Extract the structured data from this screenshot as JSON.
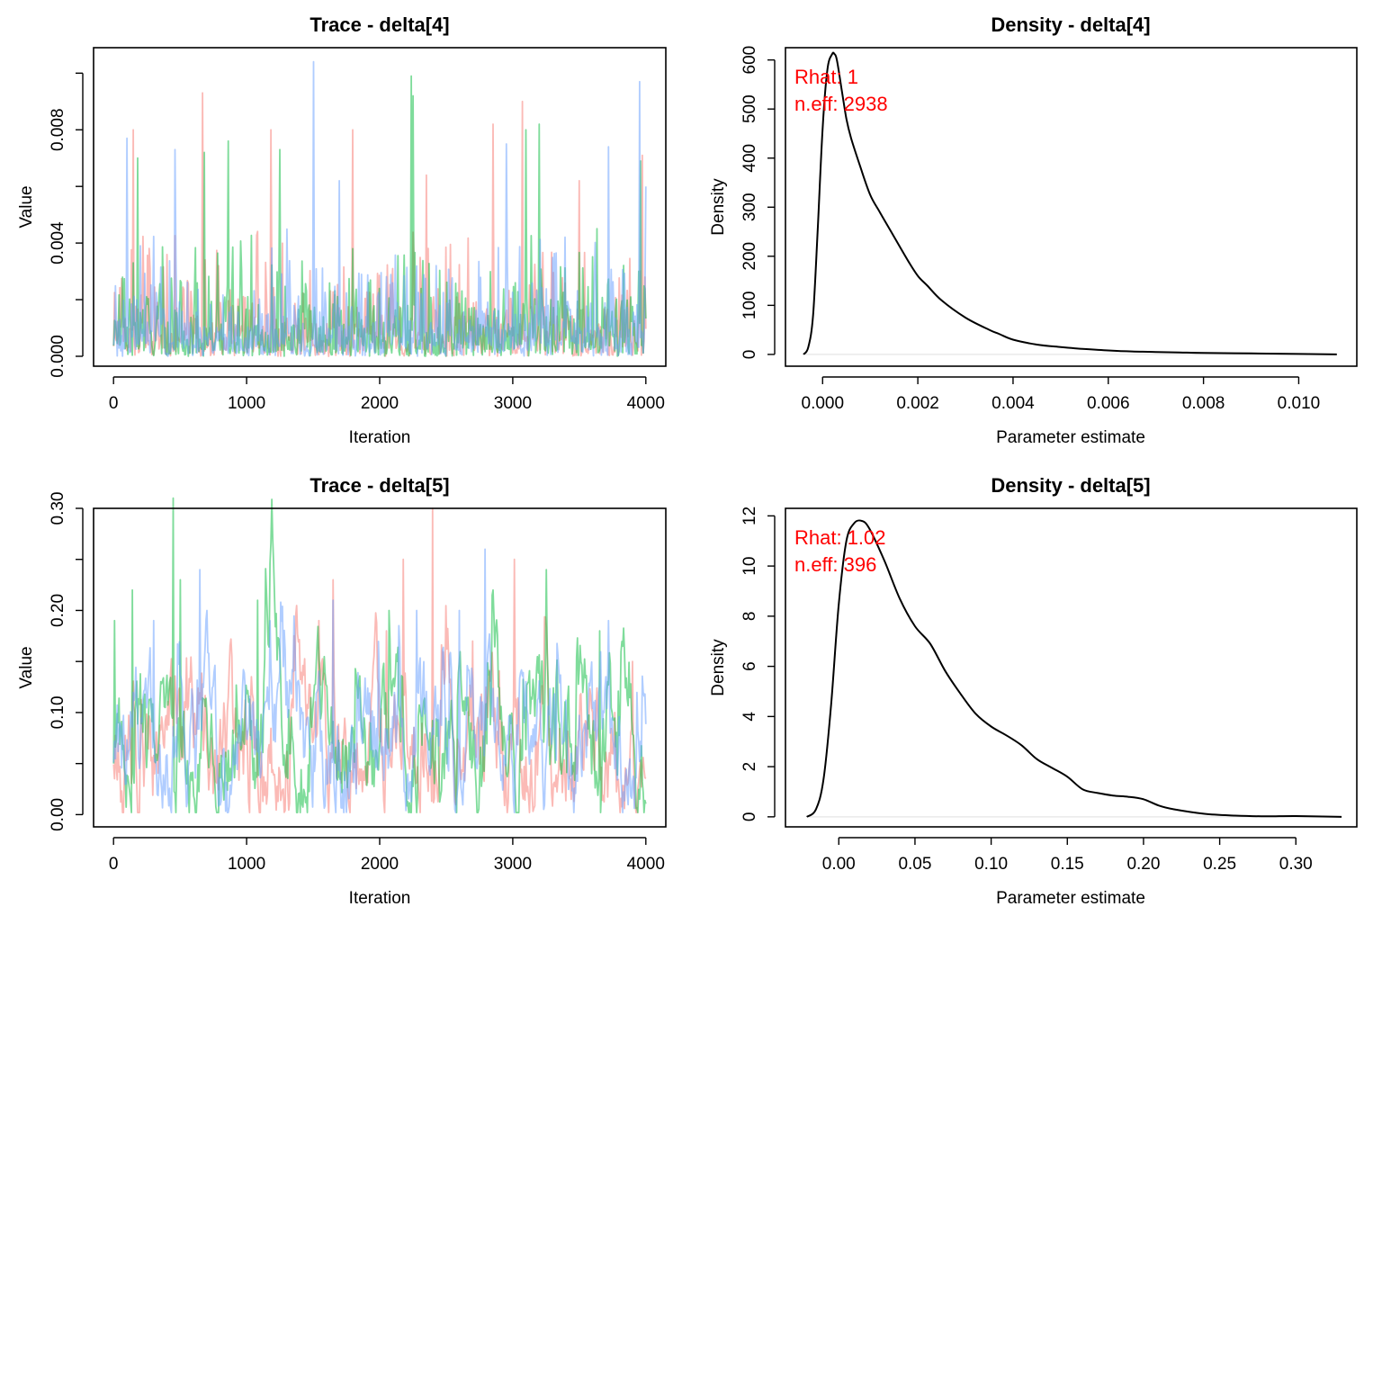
{
  "chart_data": [
    {
      "type": "line",
      "title": "Trace - delta[4]",
      "xlabel": "Iteration",
      "ylabel": "Value",
      "xlim": [
        -150,
        4150
      ],
      "ylim": [
        -0.00035,
        0.0109
      ],
      "x_ticks": [
        0,
        1000,
        2000,
        3000,
        4000
      ],
      "x_tick_labels": [
        "0",
        "1000",
        "2000",
        "3000",
        "4000"
      ],
      "y_ticks": [
        0,
        0.002,
        0.004,
        0.006,
        0.008,
        0.01
      ],
      "y_tick_labels": [
        "0.000",
        "",
        "0.004",
        "",
        "0.008",
        ""
      ],
      "series": [
        {
          "color": "#F8766D",
          "x_range": [
            1,
            4000
          ],
          "n_points": 600,
          "typical": 0.0012,
          "spikes": [
            [
              150,
              0.008
            ],
            [
              670,
              0.0093
            ],
            [
              1180,
              0.008
            ],
            [
              1800,
              0.008
            ],
            [
              2350,
              0.0064
            ],
            [
              2850,
              0.0082
            ],
            [
              3070,
              0.009
            ],
            [
              3500,
              0.0062
            ],
            [
              3970,
              0.0071
            ]
          ]
        },
        {
          "color": "#00BA38",
          "x_range": [
            1,
            4000
          ],
          "n_points": 600,
          "typical": 0.0012,
          "spikes": [
            [
              180,
              0.007
            ],
            [
              680,
              0.0072
            ],
            [
              860,
              0.0076
            ],
            [
              1250,
              0.0073
            ],
            [
              2240,
              0.0099
            ],
            [
              2250,
              0.0092
            ],
            [
              3100,
              0.008
            ],
            [
              3200,
              0.0082
            ],
            [
              3960,
              0.0069
            ]
          ]
        },
        {
          "color": "#619CFF",
          "x_range": [
            1,
            4000
          ],
          "n_points": 600,
          "typical": 0.0012,
          "spikes": [
            [
              100,
              0.0077
            ],
            [
              460,
              0.0073
            ],
            [
              1500,
              0.0104
            ],
            [
              1700,
              0.0062
            ],
            [
              2950,
              0.0075
            ],
            [
              3720,
              0.0074
            ],
            [
              3950,
              0.0097
            ],
            [
              4000,
              0.006
            ]
          ]
        }
      ]
    },
    {
      "type": "line",
      "title": "Density - delta[4]",
      "xlabel": "Parameter estimate",
      "ylabel": "Density",
      "xlim": [
        -0.00078,
        0.01122
      ],
      "ylim": [
        -24,
        625
      ],
      "x_ticks": [
        0,
        0.002,
        0.004,
        0.006,
        0.008,
        0.01
      ],
      "x_tick_labels": [
        "0.000",
        "0.002",
        "0.004",
        "0.006",
        "0.008",
        "0.010"
      ],
      "y_ticks": [
        0,
        100,
        200,
        300,
        400,
        500,
        600
      ],
      "y_tick_labels": [
        "0",
        "100",
        "200",
        "300",
        "400",
        "500",
        "600"
      ],
      "x": [
        -0.0004,
        -0.0003,
        -0.0002,
        -0.0001,
        0,
        0.0001,
        0.0002,
        0.00025,
        0.0003,
        0.0004,
        0.0005,
        0.0006,
        0.0008,
        0.001,
        0.0012,
        0.0015,
        0.0018,
        0.002,
        0.0022,
        0.0025,
        0.003,
        0.0035,
        0.0037,
        0.004,
        0.0045,
        0.005,
        0.0055,
        0.006,
        0.0065,
        0.007,
        0.0075,
        0.008,
        0.009,
        0.01,
        0.0108
      ],
      "y": [
        0,
        15,
        80,
        260,
        460,
        580,
        612,
        612,
        600,
        540,
        480,
        440,
        380,
        325,
        290,
        240,
        190,
        160,
        140,
        110,
        75,
        50,
        42,
        30,
        20,
        15,
        11,
        8,
        6,
        5,
        4,
        3,
        2,
        1,
        0
      ],
      "annotations": {
        "rhat": "Rhat: 1",
        "neff": "n.eff: 2938"
      }
    },
    {
      "type": "line",
      "title": "Trace - delta[5]",
      "xlabel": "Iteration",
      "ylabel": "Value",
      "xlim": [
        -150,
        4150
      ],
      "ylim": [
        -0.012,
        0.3
      ],
      "x_ticks": [
        0,
        1000,
        2000,
        3000,
        4000
      ],
      "x_tick_labels": [
        "0",
        "1000",
        "2000",
        "3000",
        "4000"
      ],
      "y_ticks": [
        0,
        0.05,
        0.1,
        0.15,
        0.2,
        0.25,
        0.3
      ],
      "y_tick_labels": [
        "0.00",
        "",
        "0.10",
        "",
        "0.20",
        "",
        "0.30"
      ],
      "series": [
        {
          "color": "#F8766D",
          "x_range": [
            1,
            4000
          ],
          "n_points": 600,
          "typical": 0.06,
          "spikes": [
            [
              1540,
              0.19
            ],
            [
              1650,
              0.23
            ],
            [
              2050,
              0.18
            ],
            [
              2180,
              0.25
            ],
            [
              2400,
              0.3
            ],
            [
              2700,
              0.17
            ],
            [
              3010,
              0.25
            ],
            [
              3900,
              0.15
            ]
          ]
        },
        {
          "color": "#00BA38",
          "x_range": [
            1,
            4000
          ],
          "n_points": 600,
          "typical": 0.06,
          "spikes": [
            [
              10,
              0.19
            ],
            [
              140,
              0.22
            ],
            [
              450,
              0.31
            ],
            [
              500,
              0.23
            ],
            [
              1080,
              0.21
            ],
            [
              2070,
              0.2
            ],
            [
              3250,
              0.24
            ],
            [
              3650,
              0.18
            ]
          ]
        },
        {
          "color": "#619CFF",
          "x_range": [
            1,
            4000
          ],
          "n_points": 600,
          "typical": 0.06,
          "spikes": [
            [
              300,
              0.19
            ],
            [
              650,
              0.24
            ],
            [
              700,
              0.2
            ],
            [
              1650,
              0.21
            ],
            [
              2280,
              0.2
            ],
            [
              2600,
              0.2
            ],
            [
              2790,
              0.26
            ],
            [
              3720,
              0.19
            ]
          ]
        }
      ]
    },
    {
      "type": "line",
      "title": "Density - delta[5]",
      "xlabel": "Parameter estimate",
      "ylabel": "Density",
      "xlim": [
        -0.035,
        0.34
      ],
      "ylim": [
        -0.4,
        12.3
      ],
      "x_ticks": [
        0,
        0.05,
        0.1,
        0.15,
        0.2,
        0.25,
        0.3
      ],
      "x_tick_labels": [
        "0.00",
        "0.05",
        "0.10",
        "0.15",
        "0.20",
        "0.25",
        "0.30"
      ],
      "y_ticks": [
        0,
        2,
        4,
        6,
        8,
        10,
        12
      ],
      "y_tick_labels": [
        "0",
        "2",
        "4",
        "6",
        "8",
        "10",
        "12"
      ],
      "x": [
        -0.021,
        -0.015,
        -0.01,
        -0.005,
        0,
        0.005,
        0.01,
        0.015,
        0.02,
        0.03,
        0.04,
        0.05,
        0.06,
        0.07,
        0.08,
        0.09,
        0.1,
        0.11,
        0.12,
        0.13,
        0.14,
        0.15,
        0.16,
        0.17,
        0.18,
        0.19,
        0.2,
        0.21,
        0.22,
        0.24,
        0.26,
        0.28,
        0.3,
        0.33
      ],
      "y": [
        0,
        0.3,
        1.5,
        4.5,
        8.5,
        11.0,
        11.7,
        11.8,
        11.5,
        10.2,
        8.7,
        7.6,
        6.9,
        5.8,
        4.9,
        4.1,
        3.6,
        3.25,
        2.85,
        2.3,
        1.95,
        1.6,
        1.1,
        0.95,
        0.85,
        0.8,
        0.7,
        0.45,
        0.3,
        0.12,
        0.05,
        0.02,
        0.03,
        0
      ],
      "annotations": {
        "rhat": "Rhat: 1.02",
        "neff": "n.eff: 396"
      }
    }
  ],
  "colors": {
    "chain_red": "#F8766D",
    "chain_green": "#00BA38",
    "chain_blue": "#619CFF",
    "annotation": "#FF0000",
    "zero_line": "#E5E5E5"
  }
}
